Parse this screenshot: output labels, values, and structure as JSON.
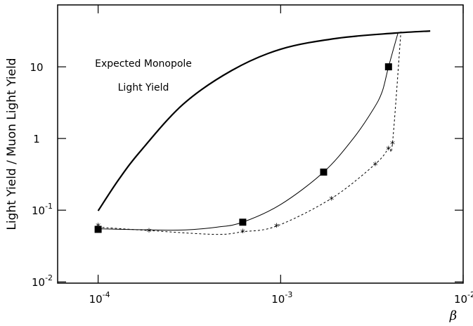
{
  "chart_data": {
    "type": "line",
    "x_scale": "log",
    "y_scale": "log",
    "x_label": "β",
    "y_label": "Light Yield / Muon Light Yield",
    "annotations": [
      "Expected Monopole",
      "Light Yield"
    ],
    "xlim": [
      6e-05,
      0.01
    ],
    "ylim": [
      0.0096,
      73
    ],
    "xticks": [
      {
        "value": 0.0001,
        "label": "10",
        "exponent": "-4"
      },
      {
        "value": 0.001,
        "label": "10",
        "exponent": "-3"
      },
      {
        "value": 0.01,
        "label": "10",
        "exponent": "-2"
      }
    ],
    "yticks": [
      {
        "value": 0.01,
        "label": "10",
        "exponent": "-2"
      },
      {
        "value": 0.1,
        "label": "10",
        "exponent": "-1"
      },
      1,
      10
    ],
    "series": [
      {
        "style": "thick",
        "color": "#000000",
        "marker": "none",
        "x": [
          0.0001,
          0.00013,
          0.000171,
          0.000292,
          0.00054,
          0.001,
          0.00204,
          0.0042,
          0.0066
        ],
        "values": [
          0.098,
          0.27,
          0.67,
          3.0,
          8.9,
          17.6,
          25,
          29.5,
          31.6
        ]
      },
      {
        "style": "solid",
        "color": "#000000",
        "marker": "none",
        "x": [
          0.0001,
          0.0002,
          0.0003,
          0.00045,
          0.00062,
          0.001,
          0.00172,
          0.0025,
          0.0032,
          0.0036,
          0.0039,
          0.0044
        ],
        "values": [
          0.055,
          0.053,
          0.053,
          0.058,
          0.068,
          0.12,
          0.34,
          1.0,
          2.5,
          4.5,
          10,
          30
        ]
      },
      {
        "style": "none",
        "color": "#000000",
        "marker": "square",
        "x": [
          0.0001,
          0.00062,
          0.00172,
          0.0039
        ],
        "values": [
          0.054,
          0.068,
          0.34,
          10
        ]
      },
      {
        "style": "dashed",
        "color": "#000000",
        "marker": "none",
        "x": [
          0.0001,
          0.00019,
          0.00044,
          0.00062,
          0.00095,
          0.0019,
          0.0033,
          0.0039,
          0.0041,
          0.00456
        ],
        "values": [
          0.058,
          0.052,
          0.046,
          0.05,
          0.06,
          0.146,
          0.44,
          0.73,
          0.87,
          31
        ]
      },
      {
        "style": "none",
        "color": "#000000",
        "marker": "star",
        "x": [
          0.0001,
          0.00019,
          0.00062,
          0.00095,
          0.0019,
          0.0033,
          0.0039,
          0.0041
        ],
        "values": [
          0.062,
          0.052,
          0.051,
          0.061,
          0.146,
          0.44,
          0.73,
          0.87
        ]
      }
    ]
  }
}
